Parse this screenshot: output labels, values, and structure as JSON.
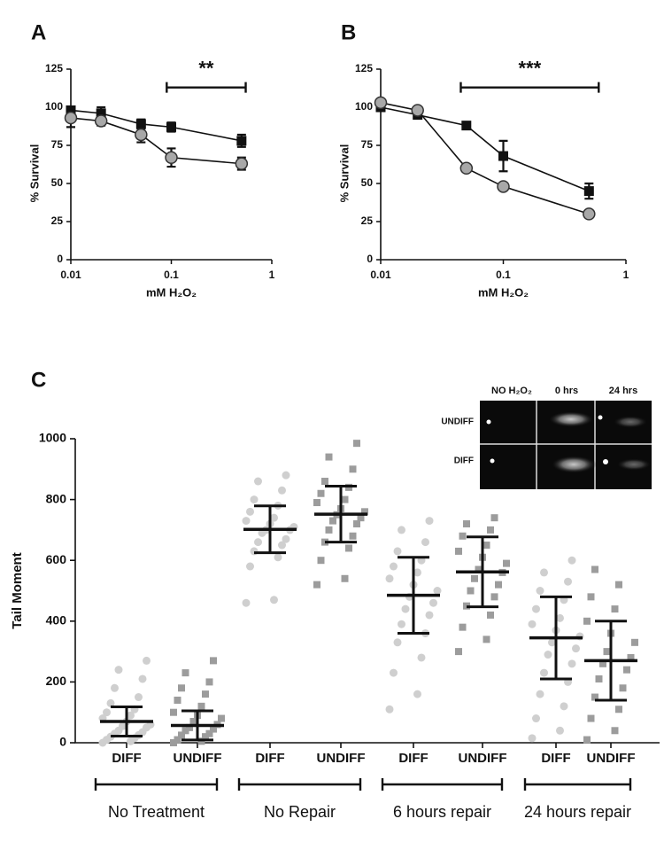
{
  "chart_data": [
    {
      "type": "line",
      "panel": "A",
      "xscale": "log",
      "xlim": [
        0.01,
        1
      ],
      "xticks": [
        0.01,
        0.1,
        1
      ],
      "ylim": [
        0,
        125
      ],
      "yticks": [
        0,
        25,
        50,
        75,
        100,
        125
      ],
      "x_label": "mM H₂O₂",
      "y_label": "% Survival",
      "x": [
        0.01,
        0.02,
        0.05,
        0.1,
        0.5
      ],
      "series": [
        {
          "marker": "square",
          "color": "#111111",
          "values": [
            98,
            96,
            89,
            87,
            78
          ],
          "errors": [
            2,
            4,
            3,
            3,
            4
          ]
        },
        {
          "marker": "circle",
          "color": "#a8a8a8",
          "values": [
            93,
            91,
            82,
            67,
            63
          ],
          "errors": [
            6,
            3,
            5,
            6,
            4
          ]
        }
      ],
      "annotation": {
        "text": "**",
        "x": [
          0.09,
          0.55
        ],
        "y": 113
      }
    },
    {
      "type": "line",
      "panel": "B",
      "xscale": "log",
      "xlim": [
        0.01,
        1
      ],
      "xticks": [
        0.01,
        0.1,
        1
      ],
      "ylim": [
        0,
        125
      ],
      "yticks": [
        0,
        25,
        50,
        75,
        100,
        125
      ],
      "x_label": "mM H₂O₂",
      "y_label": "% Survival",
      "x": [
        0.01,
        0.02,
        0.05,
        0.1,
        0.5
      ],
      "series": [
        {
          "marker": "square",
          "color": "#111111",
          "values": [
            100,
            95,
            88,
            68,
            45
          ],
          "errors": [
            2,
            2,
            2,
            10,
            5
          ]
        },
        {
          "marker": "circle",
          "color": "#a8a8a8",
          "values": [
            103,
            98,
            60,
            48,
            30
          ],
          "errors": [
            2,
            2,
            2,
            2,
            2
          ]
        }
      ],
      "annotation": {
        "text": "***",
        "x": [
          0.045,
          0.6
        ],
        "y": 113
      }
    },
    {
      "type": "scatter",
      "panel": "C",
      "y_label": "Tail Moment",
      "ylim": [
        0,
        1000
      ],
      "yticks": [
        0,
        200,
        400,
        600,
        800,
        1000
      ],
      "categories": [
        "DIFF",
        "UNDIFF",
        "DIFF",
        "UNDIFF",
        "DIFF",
        "UNDIFF",
        "DIFF",
        "UNDIFF"
      ],
      "groups": [
        "No Treatment",
        "No Repair",
        "6 hours repair",
        "24 hours repair"
      ],
      "colors": [
        "#cfcfcf",
        "#9c9c9c"
      ],
      "means": [
        70,
        57,
        702,
        752,
        485,
        562,
        345,
        270
      ],
      "sd": [
        48,
        48,
        77,
        92,
        125,
        115,
        135,
        130
      ],
      "points": [
        [
          0,
          5,
          10,
          15,
          20,
          25,
          30,
          35,
          40,
          50,
          55,
          60,
          70,
          80,
          90,
          100,
          110,
          130,
          150,
          180,
          210,
          240,
          270
        ],
        [
          0,
          5,
          10,
          20,
          25,
          30,
          40,
          45,
          50,
          60,
          70,
          80,
          90,
          100,
          120,
          140,
          160,
          180,
          200,
          230,
          270
        ],
        [
          460,
          470,
          580,
          610,
          630,
          650,
          660,
          670,
          690,
          700,
          700,
          710,
          720,
          730,
          740,
          760,
          780,
          800,
          830,
          860,
          880
        ],
        [
          520,
          540,
          600,
          640,
          660,
          680,
          700,
          720,
          730,
          740,
          750,
          760,
          770,
          790,
          800,
          820,
          840,
          860,
          900,
          940,
          985
        ],
        [
          110,
          160,
          230,
          280,
          330,
          360,
          390,
          420,
          440,
          460,
          480,
          500,
          520,
          540,
          560,
          580,
          600,
          630,
          660,
          700,
          730
        ],
        [
          300,
          340,
          380,
          420,
          450,
          480,
          500,
          520,
          540,
          560,
          570,
          590,
          610,
          630,
          650,
          680,
          700,
          720,
          740
        ],
        [
          15,
          40,
          80,
          120,
          160,
          200,
          230,
          260,
          290,
          310,
          330,
          350,
          370,
          390,
          410,
          440,
          470,
          500,
          530,
          560,
          600
        ],
        [
          10,
          40,
          80,
          110,
          150,
          180,
          210,
          240,
          260,
          280,
          300,
          330,
          360,
          400,
          440,
          480,
          520,
          570
        ]
      ],
      "inset": {
        "columns": [
          "NO H₂O₂",
          "0 hrs",
          "24 hrs"
        ],
        "rows": [
          "UNDIFF",
          "DIFF"
        ]
      }
    }
  ]
}
